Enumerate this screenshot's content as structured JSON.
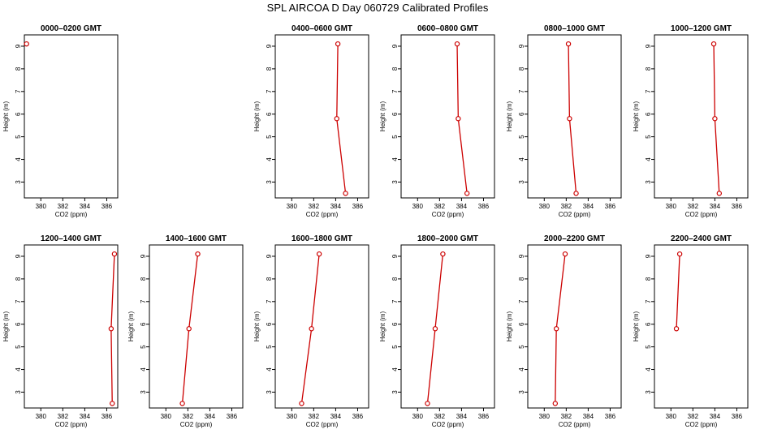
{
  "figure": {
    "title": "SPL AIRCOA D  Day 060729  Calibrated Profiles",
    "xlabel": "CO2 (ppm)",
    "ylabel": "Height (m)",
    "line_color": "#cc0000",
    "marker_color": "#cc0000"
  },
  "chart_data": [
    {
      "type": "line",
      "title": "0000–0200 GMT",
      "xlabel": "CO2 (ppm)",
      "ylabel": "Height (m)",
      "xlim": [
        378.5,
        387
      ],
      "ylim": [
        2.3,
        9.5
      ],
      "xticks": [
        380,
        382,
        384,
        386
      ],
      "yticks": [
        3,
        4,
        5,
        6,
        7,
        8,
        9
      ],
      "series": [
        {
          "points": [
            {
              "x": 378.7,
              "y": 9.1
            }
          ]
        }
      ]
    },
    null,
    {
      "type": "line",
      "title": "0400–0600 GMT",
      "xlabel": "CO2 (ppm)",
      "ylabel": "Height (m)",
      "xlim": [
        378.5,
        387
      ],
      "ylim": [
        2.3,
        9.5
      ],
      "xticks": [
        380,
        382,
        384,
        386
      ],
      "yticks": [
        3,
        4,
        5,
        6,
        7,
        8,
        9
      ],
      "series": [
        {
          "points": [
            {
              "x": 384.2,
              "y": 9.1
            },
            {
              "x": 384.1,
              "y": 5.8
            },
            {
              "x": 384.9,
              "y": 2.5
            }
          ]
        }
      ]
    },
    {
      "type": "line",
      "title": "0600–0800 GMT",
      "xlabel": "CO2 (ppm)",
      "ylabel": "Height (m)",
      "xlim": [
        378.5,
        387
      ],
      "ylim": [
        2.3,
        9.5
      ],
      "xticks": [
        380,
        382,
        384,
        386
      ],
      "yticks": [
        3,
        4,
        5,
        6,
        7,
        8,
        9
      ],
      "series": [
        {
          "points": [
            {
              "x": 383.6,
              "y": 9.1
            },
            {
              "x": 383.7,
              "y": 5.8
            },
            {
              "x": 384.5,
              "y": 2.5
            }
          ]
        }
      ]
    },
    {
      "type": "line",
      "title": "0800–1000 GMT",
      "xlabel": "CO2 (ppm)",
      "ylabel": "Height (m)",
      "xlim": [
        378.5,
        387
      ],
      "ylim": [
        2.3,
        9.5
      ],
      "xticks": [
        380,
        382,
        384,
        386
      ],
      "yticks": [
        3,
        4,
        5,
        6,
        7,
        8,
        9
      ],
      "series": [
        {
          "points": [
            {
              "x": 382.2,
              "y": 9.1
            },
            {
              "x": 382.3,
              "y": 5.8
            },
            {
              "x": 382.9,
              "y": 2.5
            }
          ]
        }
      ]
    },
    {
      "type": "line",
      "title": "1000–1200 GMT",
      "xlabel": "CO2 (ppm)",
      "ylabel": "Height (m)",
      "xlim": [
        378.5,
        387
      ],
      "ylim": [
        2.3,
        9.5
      ],
      "xticks": [
        380,
        382,
        384,
        386
      ],
      "yticks": [
        3,
        4,
        5,
        6,
        7,
        8,
        9
      ],
      "series": [
        {
          "points": [
            {
              "x": 383.9,
              "y": 9.1
            },
            {
              "x": 384.0,
              "y": 5.8
            },
            {
              "x": 384.4,
              "y": 2.5
            }
          ]
        }
      ]
    },
    {
      "type": "line",
      "title": "1200–1400 GMT",
      "xlabel": "CO2 (ppm)",
      "ylabel": "Height (m)",
      "xlim": [
        378.5,
        387
      ],
      "ylim": [
        2.3,
        9.5
      ],
      "xticks": [
        380,
        382,
        384,
        386
      ],
      "yticks": [
        3,
        4,
        5,
        6,
        7,
        8,
        9
      ],
      "series": [
        {
          "points": [
            {
              "x": 386.7,
              "y": 9.1
            },
            {
              "x": 386.4,
              "y": 5.8
            },
            {
              "x": 386.5,
              "y": 2.5
            }
          ]
        }
      ]
    },
    {
      "type": "line",
      "title": "1400–1600 GMT",
      "xlabel": "CO2 (ppm)",
      "ylabel": "Height (m)",
      "xlim": [
        378.5,
        387
      ],
      "ylim": [
        2.3,
        9.5
      ],
      "xticks": [
        380,
        382,
        384,
        386
      ],
      "yticks": [
        3,
        4,
        5,
        6,
        7,
        8,
        9
      ],
      "series": [
        {
          "points": [
            {
              "x": 382.9,
              "y": 9.1
            },
            {
              "x": 382.1,
              "y": 5.8
            },
            {
              "x": 381.5,
              "y": 2.5
            }
          ]
        }
      ]
    },
    {
      "type": "line",
      "title": "1600–1800 GMT",
      "xlabel": "CO2 (ppm)",
      "ylabel": "Height (m)",
      "xlim": [
        378.5,
        387
      ],
      "ylim": [
        2.3,
        9.5
      ],
      "xticks": [
        380,
        382,
        384,
        386
      ],
      "yticks": [
        3,
        4,
        5,
        6,
        7,
        8,
        9
      ],
      "series": [
        {
          "points": [
            {
              "x": 382.5,
              "y": 9.1
            },
            {
              "x": 381.8,
              "y": 5.8
            },
            {
              "x": 380.9,
              "y": 2.5
            }
          ]
        }
      ]
    },
    {
      "type": "line",
      "title": "1800–2000 GMT",
      "xlabel": "CO2 (ppm)",
      "ylabel": "Height (m)",
      "xlim": [
        378.5,
        387
      ],
      "ylim": [
        2.3,
        9.5
      ],
      "xticks": [
        380,
        382,
        384,
        386
      ],
      "yticks": [
        3,
        4,
        5,
        6,
        7,
        8,
        9
      ],
      "series": [
        {
          "points": [
            {
              "x": 382.3,
              "y": 9.1
            },
            {
              "x": 381.6,
              "y": 5.8
            },
            {
              "x": 380.9,
              "y": 2.5
            }
          ]
        }
      ]
    },
    {
      "type": "line",
      "title": "2000–2200 GMT",
      "xlabel": "CO2 (ppm)",
      "ylabel": "Height (m)",
      "xlim": [
        378.5,
        387
      ],
      "ylim": [
        2.3,
        9.5
      ],
      "xticks": [
        380,
        382,
        384,
        386
      ],
      "yticks": [
        3,
        4,
        5,
        6,
        7,
        8,
        9
      ],
      "series": [
        {
          "points": [
            {
              "x": 381.9,
              "y": 9.1
            },
            {
              "x": 381.1,
              "y": 5.8
            },
            {
              "x": 381.0,
              "y": 2.5
            }
          ]
        }
      ]
    },
    {
      "type": "line",
      "title": "2200–2400 GMT",
      "xlabel": "CO2 (ppm)",
      "ylabel": "Height (m)",
      "xlim": [
        378.5,
        387
      ],
      "ylim": [
        2.3,
        9.5
      ],
      "xticks": [
        380,
        382,
        384,
        386
      ],
      "yticks": [
        3,
        4,
        5,
        6,
        7,
        8,
        9
      ],
      "series": [
        {
          "points": [
            {
              "x": 380.8,
              "y": 9.1
            },
            {
              "x": 380.5,
              "y": 5.8
            }
          ]
        }
      ]
    }
  ]
}
